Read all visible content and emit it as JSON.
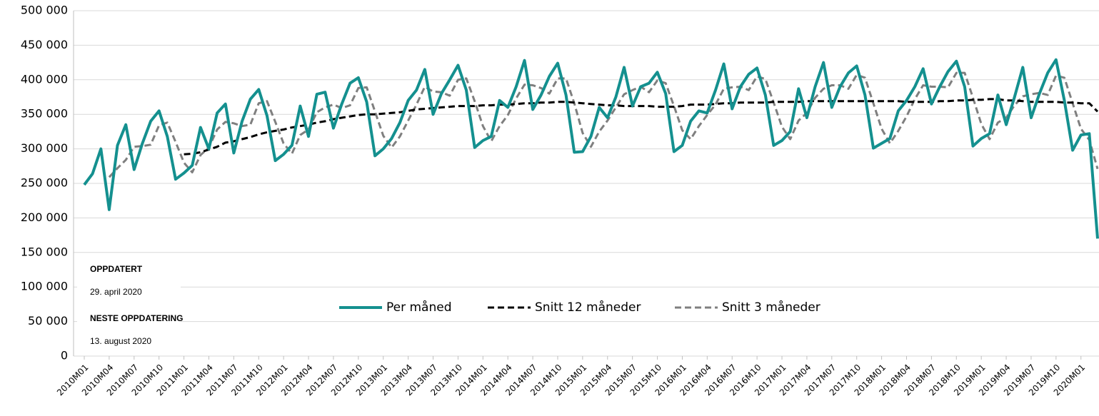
{
  "chart_data": {
    "type": "line",
    "categories": [
      "2010M01",
      null,
      null,
      "2010M04",
      null,
      null,
      "2010M07",
      null,
      null,
      "2010M10",
      null,
      null,
      "2011M01",
      null,
      null,
      "2011M04",
      null,
      null,
      "2011M07",
      null,
      null,
      "2011M10",
      null,
      null,
      "2012M01",
      null,
      null,
      "2012M04",
      null,
      null,
      "2012M07",
      null,
      null,
      "2012M10",
      null,
      null,
      "2013M01",
      null,
      null,
      "2013M04",
      null,
      null,
      "2013M07",
      null,
      null,
      "2013M10",
      null,
      null,
      "2014M01",
      null,
      null,
      "2014M04",
      null,
      null,
      "2014M07",
      null,
      null,
      "2014M10",
      null,
      null,
      "2015M01",
      null,
      null,
      "2015M04",
      null,
      null,
      "2015M07",
      null,
      null,
      "2015M10",
      null,
      null,
      "2016M01",
      null,
      null,
      "2016M04",
      null,
      null,
      "2016M07",
      null,
      null,
      "2016M10",
      null,
      null,
      "2017M01",
      null,
      null,
      "2017M04",
      null,
      null,
      "2017M07",
      null,
      null,
      "2017M10",
      null,
      null,
      "2018M01",
      null,
      null,
      "2018M04",
      null,
      null,
      "2018M07",
      null,
      null,
      "2018M10",
      null,
      null,
      "2019M01",
      null,
      null,
      "2019M04",
      null,
      null,
      "2019M07",
      null,
      null,
      "2019M10",
      null,
      null,
      "2020M01",
      null,
      null
    ],
    "series": [
      {
        "name": "Per måned",
        "color": "#14908f",
        "dash": false,
        "values": [
          248000,
          264000,
          300000,
          212000,
          305000,
          335000,
          270000,
          308000,
          340000,
          355000,
          318000,
          256000,
          265000,
          276000,
          331000,
          300000,
          352000,
          365000,
          294000,
          340000,
          372000,
          386000,
          348000,
          283000,
          292000,
          305000,
          362000,
          318000,
          379000,
          382000,
          330000,
          365000,
          395000,
          403000,
          368000,
          290000,
          300000,
          315000,
          338000,
          370000,
          385000,
          415000,
          350000,
          380000,
          400000,
          421000,
          385000,
          302000,
          312000,
          318000,
          370000,
          360000,
          390000,
          428000,
          357000,
          378000,
          405000,
          424000,
          378000,
          295000,
          296000,
          318000,
          360000,
          345000,
          375000,
          418000,
          362000,
          390000,
          395000,
          411000,
          380000,
          296000,
          305000,
          340000,
          355000,
          352000,
          385000,
          423000,
          358000,
          390000,
          408000,
          417000,
          378000,
          305000,
          312000,
          325000,
          387000,
          345000,
          390000,
          425000,
          360000,
          390000,
          410000,
          420000,
          378000,
          301000,
          308000,
          315000,
          355000,
          370000,
          390000,
          416000,
          365000,
          390000,
          412000,
          427000,
          390000,
          304000,
          315000,
          322000,
          378000,
          335000,
          375000,
          418000,
          345000,
          380000,
          410000,
          429000,
          370000,
          298000,
          320000,
          322000,
          170000
        ]
      },
      {
        "name": "Snitt 12 måneder",
        "color": "#000000",
        "dash": true,
        "values": [
          null,
          null,
          null,
          null,
          null,
          null,
          null,
          null,
          null,
          null,
          null,
          null,
          292000,
          293000,
          295000,
          299000,
          303000,
          309000,
          311000,
          314000,
          317000,
          321000,
          324000,
          326000,
          328000,
          331000,
          333000,
          335000,
          338000,
          340000,
          343000,
          345000,
          347000,
          349000,
          350000,
          350000,
          351000,
          352000,
          353000,
          355000,
          357000,
          358000,
          359000,
          360000,
          361000,
          362000,
          362000,
          362000,
          363000,
          363000,
          364000,
          364000,
          365000,
          366000,
          366000,
          367000,
          367000,
          368000,
          368000,
          367000,
          366000,
          365000,
          364000,
          363000,
          363000,
          362000,
          362000,
          362000,
          362000,
          361000,
          361000,
          361000,
          362000,
          364000,
          364000,
          364000,
          365000,
          366000,
          366000,
          367000,
          367000,
          367000,
          367000,
          368000,
          368000,
          368000,
          368000,
          369000,
          369000,
          369000,
          369000,
          369000,
          369000,
          369000,
          369000,
          369000,
          369000,
          369000,
          369000,
          368000,
          368000,
          368000,
          368000,
          369000,
          369000,
          370000,
          370000,
          371000,
          371000,
          372000,
          372000,
          370000,
          370000,
          369000,
          368000,
          368000,
          368000,
          368000,
          367000,
          367000,
          366000,
          366000,
          354000
        ]
      },
      {
        "name": "Snitt 3 måneder",
        "color": "#7f7f7f",
        "dash": true,
        "values": [
          null,
          null,
          null,
          259000,
          272000,
          284000,
          303000,
          304000,
          306000,
          334000,
          338000,
          310000,
          280000,
          266000,
          291000,
          302000,
          328000,
          339000,
          337000,
          333000,
          335000,
          366000,
          369000,
          339000,
          308000,
          293000,
          320000,
          328000,
          353000,
          360000,
          364000,
          359000,
          363000,
          388000,
          389000,
          354000,
          319000,
          302000,
          318000,
          341000,
          364000,
          390000,
          383000,
          382000,
          377000,
          400000,
          402000,
          369000,
          333000,
          311000,
          333000,
          349000,
          373000,
          393000,
          392000,
          388000,
          380000,
          402000,
          402000,
          366000,
          323000,
          303000,
          325000,
          341000,
          360000,
          379000,
          385000,
          390000,
          382000,
          399000,
          395000,
          362000,
          327000,
          314000,
          333000,
          349000,
          364000,
          387000,
          389000,
          390000,
          385000,
          405000,
          401000,
          367000,
          332000,
          314000,
          341000,
          352000,
          374000,
          387000,
          392000,
          392000,
          387000,
          407000,
          403000,
          366000,
          329000,
          308000,
          326000,
          347000,
          372000,
          392000,
          390000,
          390000,
          389000,
          410000,
          410000,
          374000,
          336000,
          314000,
          338000,
          345000,
          363000,
          376000,
          379000,
          381000,
          378000,
          406000,
          403000,
          366000,
          329000,
          313000,
          271000
        ]
      }
    ],
    "ylim": [
      0,
      500000
    ],
    "yticks": [
      0,
      {
        "value": 50000,
        "label": "50 000"
      },
      {
        "value": 100000,
        "label": "100 000"
      },
      {
        "value": 150000,
        "label": "150 000"
      },
      {
        "value": 200000,
        "label": "200 000"
      },
      {
        "value": 250000,
        "label": "250 000"
      },
      {
        "value": 300000,
        "label": "300 000"
      },
      {
        "value": 350000,
        "label": "350 000"
      },
      {
        "value": 400000,
        "label": "400 000"
      },
      {
        "value": 450000,
        "label": "450 000"
      },
      {
        "value": 500000,
        "label": "500 000"
      }
    ],
    "grid": true,
    "annotations": [
      "OPPDATERT",
      "29. april 2020",
      "NESTE OPPDATERING",
      "13. august 2020"
    ]
  }
}
